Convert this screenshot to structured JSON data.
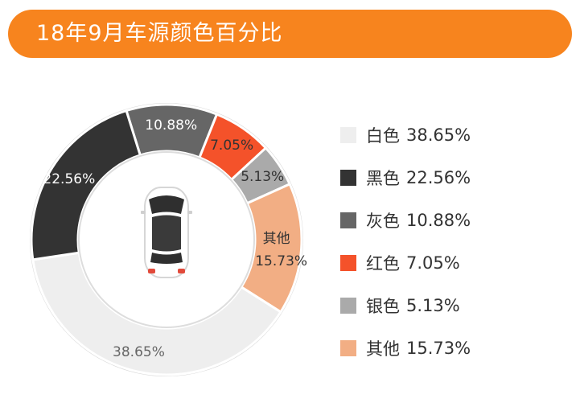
{
  "header": {
    "title": "18年9月车源颜色百分比"
  },
  "chart_data": {
    "type": "pie",
    "variant": "donut",
    "title": "18年9月车源颜色百分比",
    "slices": [
      {
        "label": "白色",
        "value": 38.65,
        "display": "38.65%",
        "color": "#eeeeee",
        "text_color": "#666666"
      },
      {
        "label": "黑色",
        "value": 22.56,
        "display": "22.56%",
        "color": "#333333",
        "text_color": "#ffffff"
      },
      {
        "label": "灰色",
        "value": 10.88,
        "display": "10.88%",
        "color": "#666666",
        "text_color": "#ffffff"
      },
      {
        "label": "红色",
        "value": 7.05,
        "display": "7.05%",
        "color": "#f4522a",
        "text_color": "#333333"
      },
      {
        "label": "银色",
        "value": 5.13,
        "display": "5.13%",
        "color": "#aaaaaa",
        "text_color": "#333333"
      },
      {
        "label": "其他",
        "value": 15.73,
        "display": "15.73%",
        "color": "#f2ae84",
        "text_color": "#333333"
      }
    ],
    "legend_position": "right",
    "center_icon": "car-top-view-icon"
  }
}
